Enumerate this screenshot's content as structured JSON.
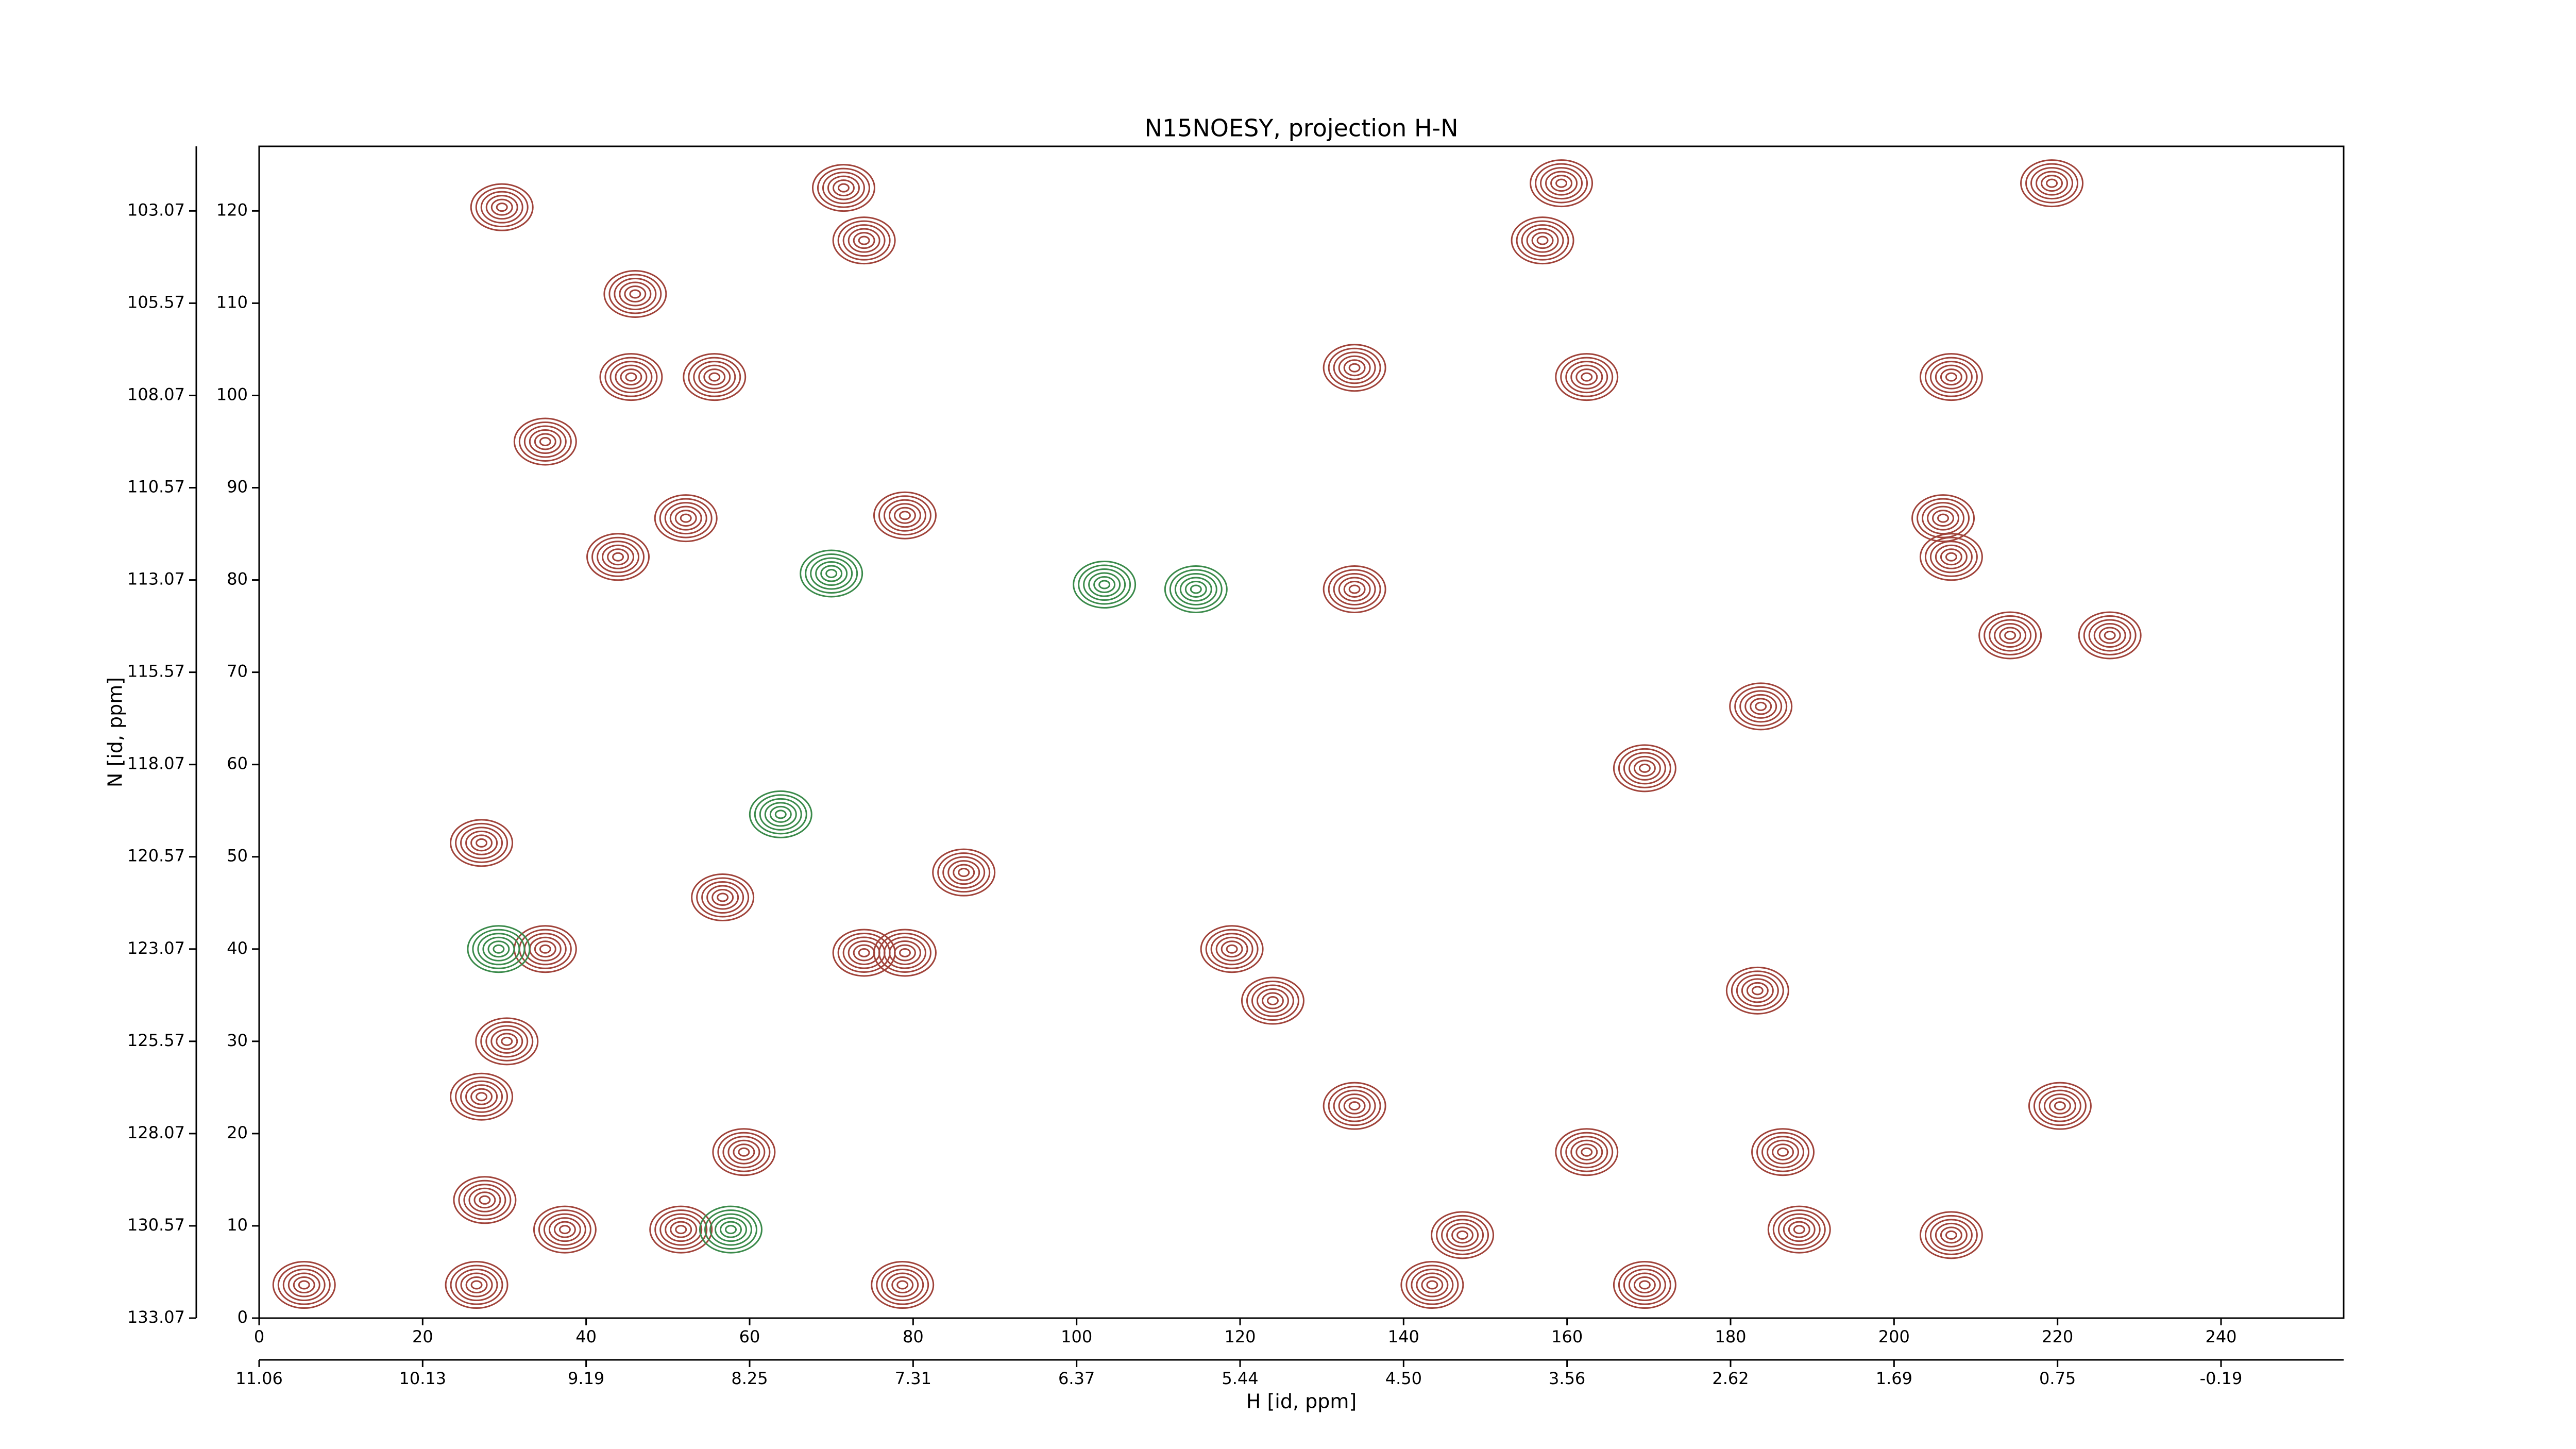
{
  "chart_data": {
    "type": "contour",
    "title": "N15NOESY, projection H-N",
    "xlabel": "H [id, ppm]",
    "ylabel": "N [id, ppm]",
    "xlim": [
      0,
      255
    ],
    "ylim": [
      0,
      127
    ],
    "xticks": [
      0,
      20,
      40,
      60,
      80,
      100,
      120,
      140,
      160,
      180,
      200,
      220,
      240
    ],
    "yticks": [
      0,
      10,
      20,
      30,
      40,
      50,
      60,
      70,
      80,
      90,
      100,
      110,
      120
    ],
    "x2ticks": [
      {
        "value": 0,
        "label": "11.06"
      },
      {
        "value": 20,
        "label": "10.13"
      },
      {
        "value": 40,
        "label": "9.19"
      },
      {
        "value": 60,
        "label": "8.25"
      },
      {
        "value": 80,
        "label": "7.31"
      },
      {
        "value": 100,
        "label": "6.37"
      },
      {
        "value": 120,
        "label": "5.44"
      },
      {
        "value": 140,
        "label": "4.50"
      },
      {
        "value": 160,
        "label": "3.56"
      },
      {
        "value": 180,
        "label": "2.62"
      },
      {
        "value": 200,
        "label": "1.69"
      },
      {
        "value": 220,
        "label": "0.75"
      },
      {
        "value": 240,
        "label": "-0.19"
      }
    ],
    "y2ticks": [
      {
        "value": 0,
        "label": "133.07"
      },
      {
        "value": 10,
        "label": "130.57"
      },
      {
        "value": 20,
        "label": "128.07"
      },
      {
        "value": 30,
        "label": "125.57"
      },
      {
        "value": 40,
        "label": "123.07"
      },
      {
        "value": 50,
        "label": "120.57"
      },
      {
        "value": 60,
        "label": "118.07"
      },
      {
        "value": 70,
        "label": "115.57"
      },
      {
        "value": 80,
        "label": "113.07"
      },
      {
        "value": 90,
        "label": "110.57"
      },
      {
        "value": 100,
        "label": "108.07"
      },
      {
        "value": 110,
        "label": "105.57"
      },
      {
        "value": 120,
        "label": "103.07"
      }
    ],
    "series": [
      {
        "color": "#a0433a",
        "x": [
          29.7,
          46,
          45.5,
          55.7,
          35,
          52.2,
          43.9,
          71.5,
          74,
          79,
          134,
          134,
          159.3,
          157,
          162.4,
          207,
          219.3,
          207,
          226.4,
          183.7,
          27.2,
          35,
          74,
          79,
          56.7,
          86.2,
          119,
          124,
          134,
          147.2,
          143.5,
          5.5,
          26.6,
          27.6,
          37.4,
          51.6,
          59.3,
          78.7,
          169.5,
          188.4,
          207,
          220.3,
          162.4,
          186.4,
          27.2,
          30.3,
          214.2,
          206,
          169.5,
          183.3
        ],
        "y": [
          120.4,
          111,
          102,
          102,
          95,
          86.7,
          82.5,
          122.5,
          116.8,
          87,
          103,
          79,
          123,
          116.8,
          102,
          102,
          123,
          82.5,
          74,
          66.3,
          51.5,
          40,
          39.6,
          39.6,
          45.6,
          48.3,
          40,
          34.4,
          23,
          9,
          3.6,
          3.6,
          3.6,
          12.8,
          9.6,
          9.6,
          18,
          3.6,
          3.6,
          9.6,
          9,
          23,
          18,
          18,
          24,
          30,
          74,
          86.7,
          59.6,
          35.5
        ]
      },
      {
        "color": "#3a8a4a",
        "x": [
          70,
          103.4,
          57.7,
          29.3,
          63.8,
          114.6
        ],
        "y": [
          80.7,
          79.5,
          9.6,
          40,
          54.6,
          79
        ]
      }
    ]
  }
}
